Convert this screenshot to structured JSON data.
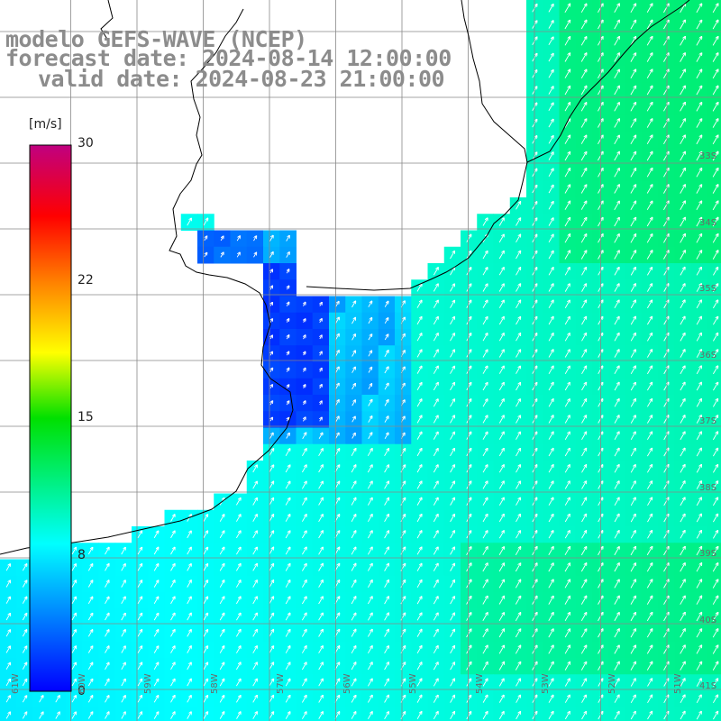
{
  "title": {
    "line1": "modelo GEFS-WAVE (NCEP)",
    "line2": "forecast date: 2024-08-14 12:00:00",
    "line3": "valid date: 2024-08-23 21:00:00"
  },
  "colorbar": {
    "unit": "[m/s]",
    "ticks": [
      "30",
      "22",
      "15",
      "8",
      "0"
    ],
    "min": 0,
    "max": 30
  },
  "grid": {
    "lat_labels": [
      "33S",
      "34S",
      "35S",
      "36S",
      "37S",
      "38S",
      "39S",
      "40S",
      "41S"
    ],
    "lon_labels": [
      "61W",
      "60W",
      "59W",
      "58W",
      "57W",
      "56W",
      "55W",
      "54W",
      "53W",
      "52W",
      "51W"
    ]
  },
  "field": {
    "variable": "wind speed",
    "units": "m/s",
    "rio_de_la_plata_inner_estuary_range": [
      1,
      3
    ],
    "outer_estuary_range": [
      5,
      7
    ],
    "open_ocean_range": [
      8,
      10
    ],
    "offshore_maximum": 12,
    "prevailing_direction": "toward the northeast"
  },
  "colors": {
    "title_text": "#8c8c8c",
    "grid_lines": "#888888",
    "coastline": "#000000"
  }
}
